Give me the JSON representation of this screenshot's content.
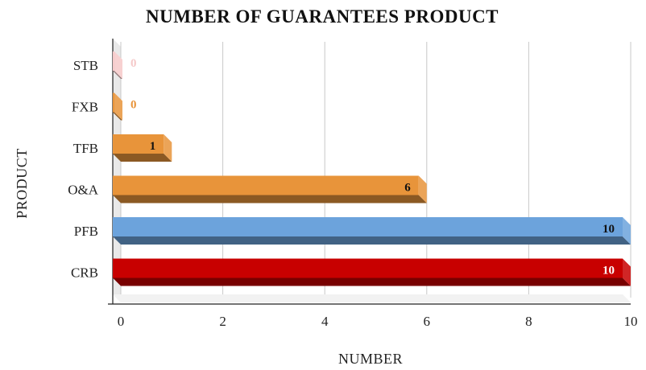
{
  "chart_data": {
    "type": "bar",
    "orientation": "horizontal",
    "title": "NUMBER OF GUARANTEES PRODUCT",
    "xlabel": "NUMBER",
    "ylabel": "PRODUCT",
    "categories": [
      "STB",
      "FXB",
      "TFB",
      "O&A",
      "PFB",
      "CRB"
    ],
    "values": [
      0,
      0,
      1,
      6,
      10,
      10
    ],
    "xlim": [
      0,
      10
    ],
    "xticks": [
      0,
      2,
      4,
      6,
      8,
      10
    ],
    "grid": "vertical",
    "legend": "none",
    "colors": [
      "#f5c9c9",
      "#e8943a",
      "#e8943a",
      "#e8943a",
      "#6ca3dc",
      "#c80000"
    ],
    "label_colors": [
      "#f5c9c9",
      "#e8943a",
      "#111111",
      "#111111",
      "#111111",
      "#ffffff"
    ]
  }
}
